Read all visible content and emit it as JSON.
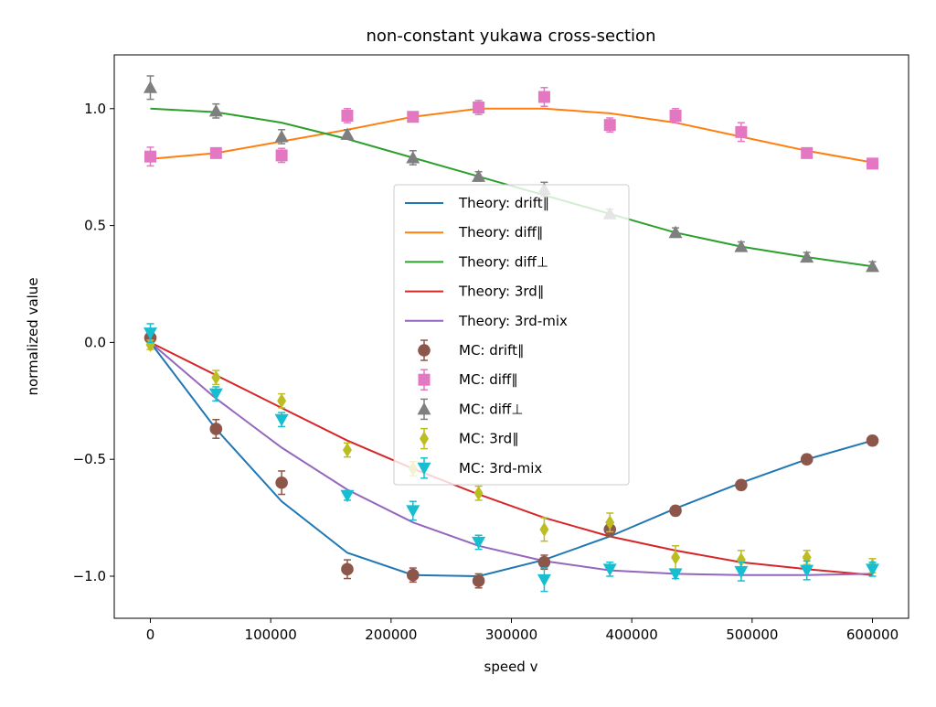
{
  "chart_data": {
    "type": "line",
    "title": "non-constant yukawa cross-section",
    "xlabel": "speed v",
    "ylabel": "normalized value",
    "xlim": [
      -30000,
      630000
    ],
    "ylim": [
      -1.18,
      1.23
    ],
    "x_ticks": [
      0,
      100000,
      200000,
      300000,
      400000,
      500000,
      600000
    ],
    "x_tick_labels": [
      "0",
      "100000",
      "200000",
      "300000",
      "400000",
      "500000",
      "600000"
    ],
    "y_ticks": [
      -1.0,
      -0.5,
      0.0,
      0.5,
      1.0
    ],
    "y_tick_labels": [
      "−1.0",
      "−0.5",
      "0.0",
      "0.5",
      "1.0"
    ],
    "grid": false,
    "legend_position": "center",
    "x": [
      0,
      54545,
      109091,
      163636,
      218182,
      272727,
      327273,
      381818,
      436364,
      490909,
      545455,
      600000
    ],
    "theory_series": [
      {
        "name": "Theory: drift∥",
        "color": "#1f77b4",
        "values": [
          0.0,
          -0.37,
          -0.68,
          -0.9,
          -0.995,
          -1.0,
          -0.93,
          -0.83,
          -0.71,
          -0.6,
          -0.5,
          -0.42
        ]
      },
      {
        "name": "Theory: diff∥",
        "color": "#ff7f0e",
        "values": [
          0.785,
          0.81,
          0.86,
          0.91,
          0.965,
          1.0,
          1.0,
          0.98,
          0.94,
          0.88,
          0.82,
          0.77
        ]
      },
      {
        "name": "Theory: diff⊥",
        "color": "#2ca02c",
        "values": [
          1.0,
          0.985,
          0.94,
          0.87,
          0.79,
          0.71,
          0.63,
          0.55,
          0.47,
          0.41,
          0.365,
          0.325
        ]
      },
      {
        "name": "Theory: 3rd∥",
        "color": "#d62728",
        "values": [
          0.0,
          -0.14,
          -0.28,
          -0.42,
          -0.54,
          -0.65,
          -0.75,
          -0.83,
          -0.89,
          -0.94,
          -0.97,
          -0.995
        ]
      },
      {
        "name": "Theory: 3rd-mix",
        "color": "#9467bd",
        "values": [
          0.0,
          -0.24,
          -0.45,
          -0.63,
          -0.77,
          -0.87,
          -0.935,
          -0.975,
          -0.99,
          -0.995,
          -0.995,
          -0.99
        ]
      }
    ],
    "mc_series": [
      {
        "name": "MC: drift∥",
        "color": "#8c564b",
        "marker": "circle",
        "values": [
          0.02,
          -0.37,
          -0.6,
          -0.97,
          -0.995,
          -1.02,
          -0.94,
          -0.8,
          -0.72,
          -0.61,
          -0.5,
          -0.42
        ],
        "errors": [
          0.03,
          0.04,
          0.05,
          0.04,
          0.03,
          0.03,
          0.03,
          0.03,
          0.02,
          0.02,
          0.02,
          0.02
        ]
      },
      {
        "name": "MC: diff∥",
        "color": "#e377c2",
        "marker": "square",
        "values": [
          0.795,
          0.81,
          0.8,
          0.97,
          0.965,
          1.005,
          1.05,
          0.93,
          0.97,
          0.9,
          0.81,
          0.765
        ],
        "errors": [
          0.04,
          0.02,
          0.03,
          0.03,
          0.02,
          0.03,
          0.04,
          0.03,
          0.03,
          0.04,
          0.02,
          0.02
        ]
      },
      {
        "name": "MC: diff⊥",
        "color": "#7f7f7f",
        "marker": "triangle-up",
        "values": [
          1.09,
          0.99,
          0.88,
          0.89,
          0.79,
          0.71,
          0.655,
          0.55,
          0.47,
          0.41,
          0.365,
          0.325
        ],
        "errors": [
          0.05,
          0.03,
          0.03,
          0.02,
          0.03,
          0.02,
          0.03,
          0.02,
          0.02,
          0.02,
          0.02,
          0.02
        ]
      },
      {
        "name": "MC: 3rd∥",
        "color": "#bcbd22",
        "marker": "diamond",
        "values": [
          -0.01,
          -0.15,
          -0.25,
          -0.46,
          -0.54,
          -0.645,
          -0.8,
          -0.77,
          -0.92,
          -0.93,
          -0.92,
          -0.955
        ],
        "errors": [
          0.02,
          0.03,
          0.03,
          0.03,
          0.03,
          0.03,
          0.05,
          0.04,
          0.05,
          0.04,
          0.03,
          0.03
        ]
      },
      {
        "name": "MC: 3rd-mix",
        "color": "#17becf",
        "marker": "triangle-down",
        "values": [
          0.04,
          -0.22,
          -0.33,
          -0.655,
          -0.72,
          -0.855,
          -1.015,
          -0.97,
          -0.99,
          -0.98,
          -0.975,
          -0.97
        ],
        "errors": [
          0.04,
          0.03,
          0.03,
          0.02,
          0.04,
          0.03,
          0.05,
          0.03,
          0.02,
          0.04,
          0.04,
          0.03
        ]
      }
    ]
  }
}
